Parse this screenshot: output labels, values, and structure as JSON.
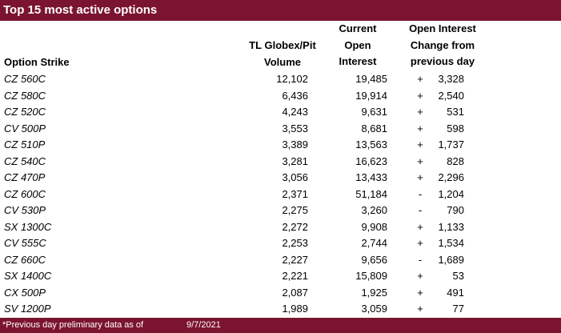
{
  "title": "Top 15 most active options",
  "headers": {
    "strike": "Option Strike",
    "volume": [
      "TL Globex/Pit",
      "Volume"
    ],
    "open_interest": [
      "Current",
      "Open",
      "Interest"
    ],
    "change": [
      "Open Interest",
      "Change from",
      "previous day"
    ]
  },
  "rows": [
    {
      "strike": "CZ 560C",
      "volume": "12,102",
      "oi": "19,485",
      "sign": "+",
      "change": "3,328"
    },
    {
      "strike": "CZ 580C",
      "volume": "6,436",
      "oi": "19,914",
      "sign": "+",
      "change": "2,540"
    },
    {
      "strike": "CZ 520C",
      "volume": "4,243",
      "oi": "9,631",
      "sign": "+",
      "change": "531"
    },
    {
      "strike": "CV 500P",
      "volume": "3,553",
      "oi": "8,681",
      "sign": "+",
      "change": "598"
    },
    {
      "strike": "CZ 510P",
      "volume": "3,389",
      "oi": "13,563",
      "sign": "+",
      "change": "1,737"
    },
    {
      "strike": "CZ 540C",
      "volume": "3,281",
      "oi": "16,623",
      "sign": "+",
      "change": "828"
    },
    {
      "strike": "CZ 470P",
      "volume": "3,056",
      "oi": "13,433",
      "sign": "+",
      "change": "2,296"
    },
    {
      "strike": "CZ 600C",
      "volume": "2,371",
      "oi": "51,184",
      "sign": "-",
      "change": "1,204"
    },
    {
      "strike": "CV 530P",
      "volume": "2,275",
      "oi": "3,260",
      "sign": "-",
      "change": "790"
    },
    {
      "strike": "SX 1300C",
      "volume": "2,272",
      "oi": "9,908",
      "sign": "+",
      "change": "1,133"
    },
    {
      "strike": "CV 555C",
      "volume": "2,253",
      "oi": "2,744",
      "sign": "+",
      "change": "1,534"
    },
    {
      "strike": "CZ 660C",
      "volume": "2,227",
      "oi": "9,656",
      "sign": "-",
      "change": "1,689"
    },
    {
      "strike": "SX 1400C",
      "volume": "2,221",
      "oi": "15,809",
      "sign": "+",
      "change": "53"
    },
    {
      "strike": "CX 500P",
      "volume": "2,087",
      "oi": "1,925",
      "sign": "+",
      "change": "491"
    },
    {
      "strike": "SV 1200P",
      "volume": "1,989",
      "oi": "3,059",
      "sign": "+",
      "change": "77"
    }
  ],
  "footer": {
    "note": "*Previous day preliminary data as of",
    "date": "9/7/2021"
  },
  "colors": {
    "banner": "#7b1430",
    "banner_text": "#ffffff"
  }
}
